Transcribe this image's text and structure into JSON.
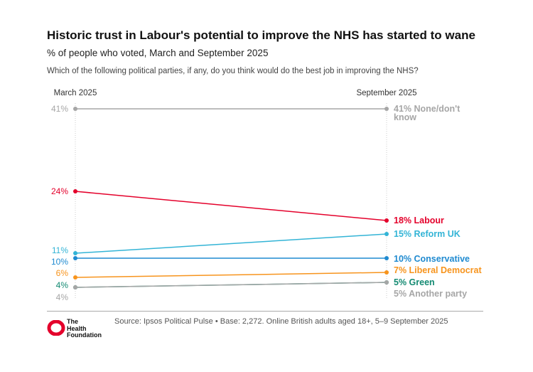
{
  "header": {
    "title": "Historic trust in Labour's potential to improve the NHS has started to wane",
    "subtitle": "% of people who voted, March and September 2025",
    "question": "Which of the following political parties, if any, do you think would do the best job in improving the NHS?"
  },
  "footer": {
    "source": "Source: Ipsos Political Pulse • Base: 2,272. Online British adults aged 18+, 5–9 September 2025",
    "logo_lines": [
      "The",
      "Health",
      "Foundation"
    ]
  },
  "chart_data": {
    "type": "line",
    "title": "Historic trust in Labour's potential to improve the NHS has started to wane",
    "subtitle": "% of people who voted, March and September 2025",
    "x": [
      "March 2025",
      "September 2025"
    ],
    "ylim": [
      0,
      45
    ],
    "grid": false,
    "series": [
      {
        "name": "None/don't know",
        "values": [
          41,
          41
        ],
        "color": "#a6a6a6",
        "start_label": "41%",
        "end_label": "41% None/don't know"
      },
      {
        "name": "Labour",
        "values": [
          24,
          18
        ],
        "color": "#e4002b",
        "start_label": "24%",
        "end_label": "18% Labour"
      },
      {
        "name": "Reform UK",
        "values": [
          11,
          15
        ],
        "color": "#33b4d6",
        "start_label": "11%",
        "end_label": "15% Reform UK"
      },
      {
        "name": "Conservative",
        "values": [
          10,
          10
        ],
        "color": "#1f8ad0",
        "start_label": "10%",
        "end_label": "10% Conservative"
      },
      {
        "name": "Liberal Democrat",
        "values": [
          6,
          7
        ],
        "color": "#f7941d",
        "start_label": "6%",
        "end_label": "7% Liberal Democrat"
      },
      {
        "name": "Green",
        "values": [
          4,
          5
        ],
        "color": "#138a72",
        "start_label": "4%",
        "end_label": "5% Green"
      },
      {
        "name": "Another party",
        "values": [
          4,
          5
        ],
        "color": "#a6a6a6",
        "start_label": "4%",
        "end_label": "5% Another party"
      }
    ]
  }
}
